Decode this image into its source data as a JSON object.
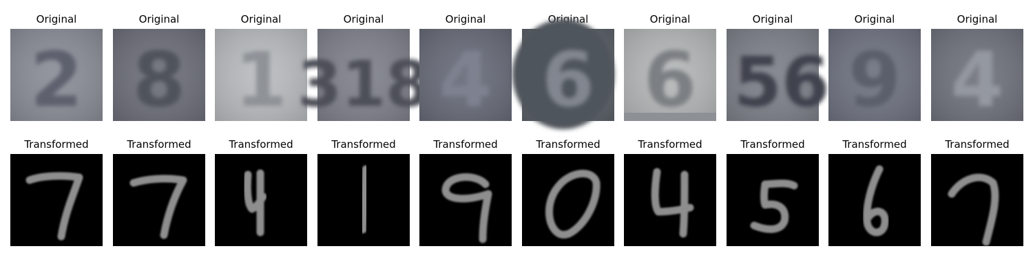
{
  "rows": [
    {
      "title": "Original",
      "kind": "original",
      "panels": [
        {
          "digit": "2",
          "label": "2",
          "bg": "#8a8d97",
          "ink": "#5d616d"
        },
        {
          "digit": "8",
          "label": "8",
          "bg": "#6c6e79",
          "ink": "#4f525c"
        },
        {
          "digit": "1",
          "label": "1",
          "bg": "#b9bcbf",
          "ink": "#8f9398"
        },
        {
          "digit": "8",
          "label": "318",
          "bg": "#7f818b",
          "ink": "#4d4f58"
        },
        {
          "digit": "4",
          "label": "4",
          "bg": "#676b78",
          "ink": "#7e8290"
        },
        {
          "digit": "6",
          "label": "6",
          "bg": "#5c6169",
          "ink": "#828690"
        },
        {
          "digit": "6",
          "label": "6",
          "bg": "#b5b8b8",
          "ink": "#7b7f83"
        },
        {
          "digit": "5",
          "label": "56",
          "bg": "#7d8089",
          "ink": "#3f434d"
        },
        {
          "digit": "9",
          "label": "9",
          "bg": "#6e7280",
          "ink": "#5a5e6b"
        },
        {
          "digit": "4",
          "label": "4",
          "bg": "#6f727c",
          "ink": "#9498a0"
        }
      ]
    },
    {
      "title": "Transformed",
      "kind": "transformed",
      "panels": [
        {
          "digit": "7",
          "bg": "#000000",
          "ink": "#8e8e8e"
        },
        {
          "digit": "7",
          "bg": "#000000",
          "ink": "#8e8e8e"
        },
        {
          "digit": "4",
          "bg": "#000000",
          "ink": "#8e8e8e"
        },
        {
          "digit": "1",
          "bg": "#000000",
          "ink": "#8e8e8e"
        },
        {
          "digit": "9",
          "bg": "#000000",
          "ink": "#8e8e8e"
        },
        {
          "digit": "0",
          "bg": "#000000",
          "ink": "#8e8e8e"
        },
        {
          "digit": "4",
          "bg": "#000000",
          "ink": "#8e8e8e"
        },
        {
          "digit": "5",
          "bg": "#000000",
          "ink": "#8e8e8e"
        },
        {
          "digit": "6",
          "bg": "#000000",
          "ink": "#8e8e8e"
        },
        {
          "digit": "7",
          "bg": "#000000",
          "ink": "#8e8e8e"
        }
      ]
    }
  ]
}
